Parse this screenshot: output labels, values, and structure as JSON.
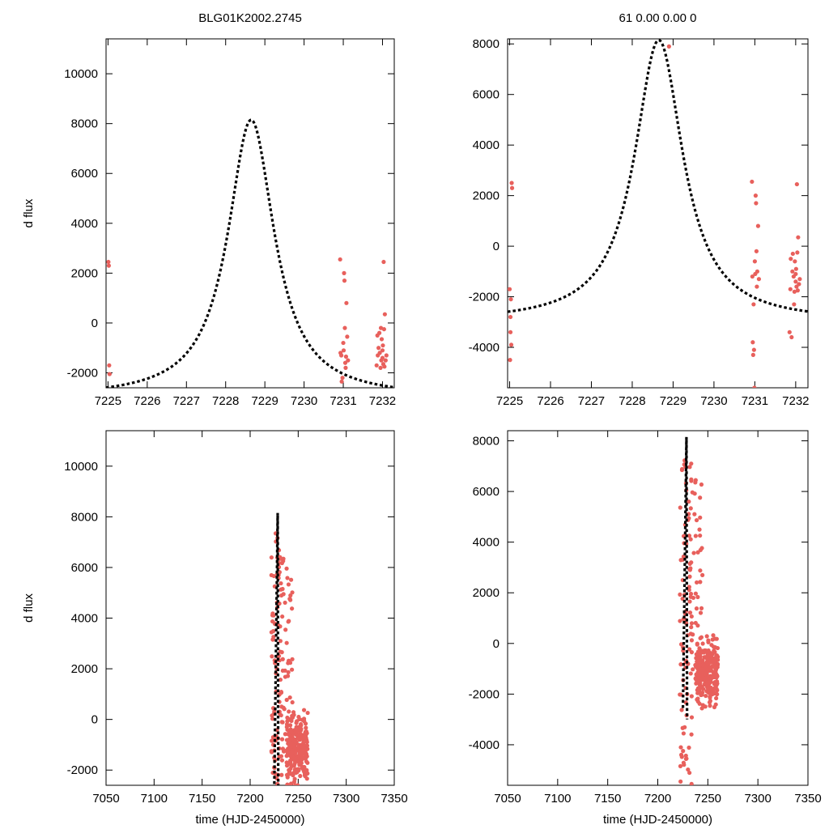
{
  "colors": {
    "points": "#e8605c",
    "model": "#000000",
    "frame": "#000000"
  },
  "chart_data": [
    {
      "type": "scatter",
      "panel": "top-left",
      "title": "BLG01K2002.2745",
      "xlabel": "",
      "ylabel": "d flux",
      "xlim": [
        7224.95,
        7232.3
      ],
      "ylim": [
        -2600,
        11400
      ],
      "xticks": [
        7225,
        7226,
        7227,
        7228,
        7229,
        7230,
        7231,
        7232
      ],
      "yticks": [
        -2000,
        0,
        2000,
        4000,
        6000,
        8000,
        10000
      ],
      "grid": false,
      "model": {
        "t0": 7228.65,
        "peak": 8150,
        "base": -3000,
        "width": 0.72
      },
      "points": {
        "x": [
          7225.01,
          7225.02,
          7225.03,
          7225.04,
          7230.92,
          7230.93,
          7230.95,
          7230.96,
          7230.98,
          7231.0,
          7231.01,
          7231.02,
          7231.03,
          7231.04,
          7231.05,
          7231.06,
          7231.07,
          7231.08,
          7231.1,
          7231.12,
          7231.85,
          7231.87,
          7231.88,
          7231.9,
          7231.92,
          7231.93,
          7231.95,
          7231.96,
          7231.97,
          7231.98,
          7232.0,
          7232.0,
          7232.01,
          7232.02,
          7232.03,
          7232.04,
          7232.05,
          7232.06,
          7232.08,
          7232.1
        ],
        "y": [
          2450,
          2300,
          -1700,
          -2050,
          2550,
          -1200,
          -1300,
          -2350,
          -2200,
          -800,
          -1100,
          2000,
          1700,
          -200,
          -1600,
          -1800,
          -1350,
          800,
          -550,
          -1500,
          -1700,
          -500,
          -1300,
          -1000,
          -400,
          -1200,
          -1800,
          -200,
          -1500,
          -650,
          -1400,
          -1100,
          -900,
          -1650,
          2450,
          -250,
          -1750,
          350,
          -1500,
          -1300
        ]
      }
    },
    {
      "type": "scatter",
      "panel": "top-right",
      "title": "61  0.00  0.00  0",
      "xlabel": "",
      "ylabel": "",
      "xlim": [
        7224.95,
        7232.3
      ],
      "ylim": [
        -5600,
        8200
      ],
      "xticks": [
        7225,
        7226,
        7227,
        7228,
        7229,
        7230,
        7231,
        7232
      ],
      "yticks": [
        -4000,
        -2000,
        0,
        2000,
        4000,
        6000,
        8000
      ],
      "grid": false,
      "model": {
        "t0": 7228.65,
        "peak": 8150,
        "base": -3000,
        "width": 0.72
      },
      "points": {
        "x": [
          7225.0,
          7225.01,
          7225.02,
          7225.02,
          7225.03,
          7225.04,
          7225.05,
          7225.06,
          7228.9,
          7230.93,
          7230.94,
          7230.95,
          7230.96,
          7230.97,
          7230.98,
          7230.99,
          7231.0,
          7231.01,
          7231.02,
          7231.03,
          7231.04,
          7231.05,
          7231.06,
          7231.08,
          7231.1,
          7231.85,
          7231.87,
          7231.88,
          7231.9,
          7231.92,
          7231.93,
          7231.95,
          7231.96,
          7231.97,
          7231.98,
          7232.0,
          7232.0,
          7232.01,
          7232.02,
          7232.03,
          7232.04,
          7232.05,
          7232.06,
          7232.08,
          7232.1
        ],
        "y": [
          -1700,
          -4500,
          -2800,
          -3400,
          -2100,
          -3900,
          2500,
          2300,
          7900,
          2550,
          -1200,
          -3800,
          -4300,
          -2300,
          -4100,
          -5600,
          -600,
          -1100,
          2000,
          1700,
          -200,
          -1600,
          -1000,
          800,
          -1300,
          -3400,
          -1700,
          -500,
          -3600,
          -1000,
          -300,
          -1200,
          -2300,
          -1800,
          -600,
          -1400,
          -1100,
          -900,
          -1600,
          2450,
          -250,
          -1750,
          350,
          -1500,
          -1300
        ]
      }
    },
    {
      "type": "scatter",
      "panel": "bottom-left",
      "title": "",
      "xlabel": "time (HJD-2450000)",
      "ylabel": "d flux",
      "xlim": [
        7050,
        7350
      ],
      "ylim": [
        -2600,
        11400
      ],
      "xticks": [
        7050,
        7100,
        7150,
        7200,
        7250,
        7300,
        7350
      ],
      "yticks": [
        -2000,
        0,
        2000,
        4000,
        6000,
        8000,
        10000
      ],
      "grid": false,
      "model": {
        "t0": 7228.65,
        "peak": 8150,
        "base": -3000,
        "width": 0.72
      },
      "points": {
        "x_range": [
          7222,
          7260
        ],
        "y_range": [
          -2600,
          8400
        ],
        "count": 380
      }
    },
    {
      "type": "scatter",
      "panel": "bottom-right",
      "title": "",
      "xlabel": "time (HJD-2450000)",
      "ylabel": "",
      "xlim": [
        7050,
        7350
      ],
      "ylim": [
        -5600,
        8400
      ],
      "xticks": [
        7050,
        7100,
        7150,
        7200,
        7250,
        7300,
        7350
      ],
      "yticks": [
        -4000,
        -2000,
        0,
        2000,
        4000,
        6000,
        8000
      ],
      "grid": false,
      "model": {
        "t0": 7228.65,
        "peak": 8150,
        "base": -3000,
        "width": 0.72
      },
      "points": {
        "x_range": [
          7222,
          7260
        ],
        "y_range": [
          -5600,
          8400
        ],
        "count": 380
      }
    }
  ]
}
